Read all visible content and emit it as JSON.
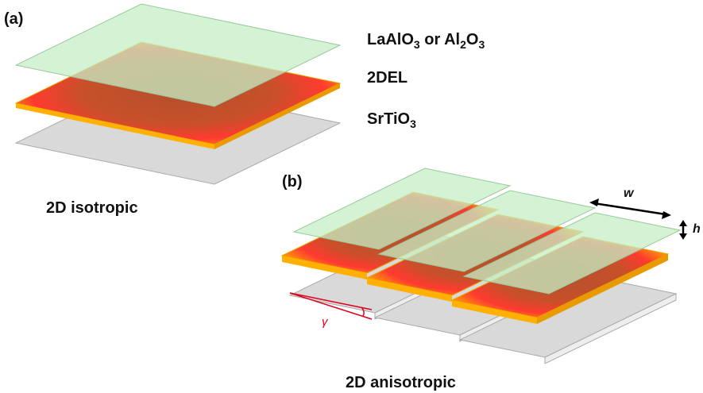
{
  "panels": [
    {
      "label": "(a)",
      "caption": "2D isotropic",
      "layers": [
        {
          "label": [
            "LaAlO",
            "3",
            " or Al",
            "2",
            "O",
            "3"
          ]
        },
        {
          "label": [
            "2DEL"
          ]
        },
        {
          "label": [
            "SrTiO",
            "3"
          ]
        }
      ]
    },
    {
      "label": "(b)",
      "caption": "2D anisotropic",
      "width_symbol": "w",
      "height_symbol": "h",
      "angle_symbol": "γ"
    }
  ]
}
